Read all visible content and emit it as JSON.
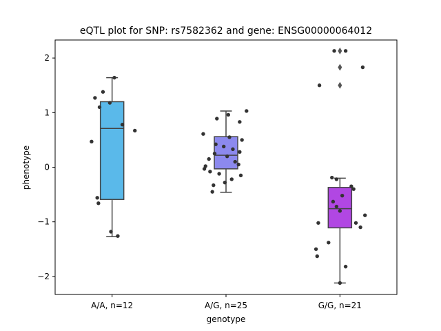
{
  "chart_data": {
    "type": "box",
    "title": "eQTL plot for SNP: rs7582362 and gene: ENSG00000064012",
    "xlabel": "genotype",
    "ylabel": "phenotype",
    "ylim": [
      -2.33,
      2.33
    ],
    "yticks": [
      {
        "value": 2,
        "label": "2"
      },
      {
        "value": 1,
        "label": "1"
      },
      {
        "value": 0,
        "label": "0"
      },
      {
        "value": -1,
        "label": "−1"
      },
      {
        "value": -2,
        "label": "−2"
      }
    ],
    "grid": false,
    "groups": [
      {
        "category": "A/A, n=12",
        "color": "#5ab9ea",
        "box": {
          "q1": -0.59,
          "median": 0.71,
          "q3": 1.2,
          "whisker_low": -1.27,
          "whisker_high": 1.64
        },
        "outliers": [],
        "points": [
          {
            "x": 0.02,
            "y": 1.64
          },
          {
            "x": -0.08,
            "y": 1.38
          },
          {
            "x": -0.15,
            "y": 1.27
          },
          {
            "x": -0.02,
            "y": 1.18
          },
          {
            "x": -0.11,
            "y": 1.1
          },
          {
            "x": 0.09,
            "y": 0.78
          },
          {
            "x": 0.2,
            "y": 0.67
          },
          {
            "x": -0.18,
            "y": 0.47
          },
          {
            "x": -0.13,
            "y": -0.56
          },
          {
            "x": -0.12,
            "y": -0.66
          },
          {
            "x": -0.01,
            "y": -1.18
          },
          {
            "x": 0.05,
            "y": -1.26
          }
        ]
      },
      {
        "category": "A/G, n=25",
        "color": "#8c89ee",
        "box": {
          "q1": -0.03,
          "median": 0.22,
          "q3": 0.56,
          "whisker_low": -0.46,
          "whisker_high": 1.03
        },
        "outliers": [],
        "points": [
          {
            "x": 0.18,
            "y": 1.03
          },
          {
            "x": 0.02,
            "y": 0.96
          },
          {
            "x": -0.08,
            "y": 0.89
          },
          {
            "x": 0.12,
            "y": 0.83
          },
          {
            "x": -0.2,
            "y": 0.61
          },
          {
            "x": 0.03,
            "y": 0.55
          },
          {
            "x": 0.14,
            "y": 0.5
          },
          {
            "x": -0.09,
            "y": 0.42
          },
          {
            "x": -0.02,
            "y": 0.38
          },
          {
            "x": 0.06,
            "y": 0.33
          },
          {
            "x": 0.12,
            "y": 0.28
          },
          {
            "x": -0.1,
            "y": 0.25
          },
          {
            "x": 0.01,
            "y": 0.2
          },
          {
            "x": -0.15,
            "y": 0.15
          },
          {
            "x": 0.08,
            "y": 0.1
          },
          {
            "x": 0.11,
            "y": 0.05
          },
          {
            "x": -0.18,
            "y": 0.02
          },
          {
            "x": -0.19,
            "y": -0.03
          },
          {
            "x": -0.14,
            "y": -0.08
          },
          {
            "x": -0.06,
            "y": -0.12
          },
          {
            "x": 0.13,
            "y": -0.15
          },
          {
            "x": 0.05,
            "y": -0.22
          },
          {
            "x": -0.01,
            "y": -0.28
          },
          {
            "x": -0.11,
            "y": -0.33
          },
          {
            "x": -0.12,
            "y": -0.45
          }
        ]
      },
      {
        "category": "G/G, n=21",
        "color": "#b147e3",
        "box": {
          "q1": -1.11,
          "median": -0.76,
          "q3": -0.37,
          "whisker_low": -2.12,
          "whisker_high": -0.2
        },
        "outliers": [
          2.13,
          1.83,
          1.5
        ],
        "points": [
          {
            "x": -0.05,
            "y": 2.13
          },
          {
            "x": 0.05,
            "y": 2.13
          },
          {
            "x": 0.2,
            "y": 1.83
          },
          {
            "x": -0.18,
            "y": 1.5
          },
          {
            "x": -0.07,
            "y": -0.19
          },
          {
            "x": -0.03,
            "y": -0.22
          },
          {
            "x": 0.1,
            "y": -0.35
          },
          {
            "x": 0.12,
            "y": -0.4
          },
          {
            "x": 0.02,
            "y": -0.52
          },
          {
            "x": -0.06,
            "y": -0.63
          },
          {
            "x": -0.03,
            "y": -0.72
          },
          {
            "x": 0.0,
            "y": -0.8
          },
          {
            "x": 0.22,
            "y": -0.88
          },
          {
            "x": 0.14,
            "y": -1.02
          },
          {
            "x": -0.19,
            "y": -1.02
          },
          {
            "x": 0.18,
            "y": -1.1
          },
          {
            "x": -0.1,
            "y": -1.38
          },
          {
            "x": -0.21,
            "y": -1.5
          },
          {
            "x": -0.2,
            "y": -1.63
          },
          {
            "x": 0.05,
            "y": -1.82
          },
          {
            "x": 0.0,
            "y": -2.12
          }
        ]
      }
    ]
  }
}
